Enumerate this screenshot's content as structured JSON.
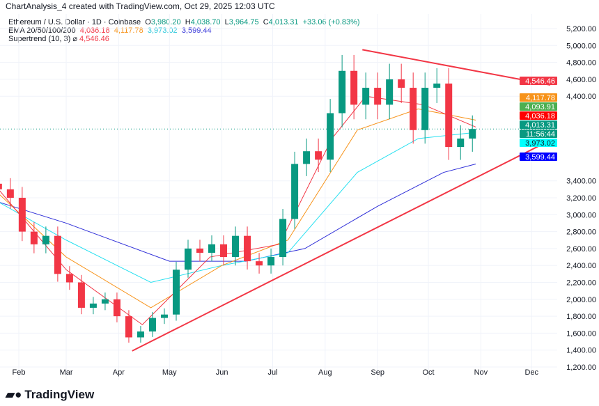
{
  "header": {
    "title": "ChartAnalysis_4 created with TradingView.com, Oct 29, 2025 12:03 UTC",
    "symbol": "Ethereum / U.S. Dollar · 1D · Coinbase",
    "open": "3,980.20",
    "high": "4,038.70",
    "low": "3,964.75",
    "close": "4,013.31",
    "change": "+33.06 (+0.83%)",
    "ema_label": "EMA 20/50/100/200",
    "ema20": "4,036.18",
    "ema50": "4,117.78",
    "ema100": "3,973.02",
    "ema200": "3,599.44",
    "st_label": "Supertrend (10, 3)",
    "st_value": "4,546.46"
  },
  "logo": "TradingView",
  "colors": {
    "up": "#089981",
    "down": "#f23645",
    "ema20": "#f23645",
    "ema50": "#f7931a",
    "ema100": "#26e0f0",
    "ema200": "#2f2fd8",
    "trend": "#f23645"
  },
  "price_labels": [
    {
      "text": "4,546.46",
      "color": "#f23645"
    },
    {
      "text": "4,117.78",
      "color": "#f7931a"
    },
    {
      "text": "4,093.91",
      "color": "#4caf50"
    },
    {
      "text": "4,036.18",
      "color": "#ff0000"
    },
    {
      "text": "4,013.31",
      "color": "#089981"
    },
    {
      "text": "11:56:44",
      "color": "#089981"
    },
    {
      "text": "3,973.02",
      "color": "#00ffff"
    },
    {
      "text": "3,599.44",
      "color": "#0000ff"
    }
  ],
  "chart_data": {
    "type": "candlestick",
    "ylim": [
      1100,
      5300
    ],
    "y_ticks": [
      1200,
      1400,
      1600,
      1800,
      2000,
      2200,
      2400,
      2600,
      2800,
      3000,
      3200,
      3400,
      4400,
      4600,
      4800,
      5000,
      5200
    ],
    "x_ticks": [
      {
        "label": "Feb",
        "date": "2025-02-01"
      },
      {
        "label": "Mar",
        "date": "2025-03-01"
      },
      {
        "label": "Apr",
        "date": "2025-04-01"
      },
      {
        "label": "May",
        "date": "2025-05-01"
      },
      {
        "label": "Jun",
        "date": "2025-06-01"
      },
      {
        "label": "Jul",
        "date": "2025-07-01"
      },
      {
        "label": "Aug",
        "date": "2025-08-01"
      },
      {
        "label": "Sep",
        "date": "2025-09-01"
      },
      {
        "label": "Oct",
        "date": "2025-10-01"
      },
      {
        "label": "Nov",
        "date": "2025-11-01"
      },
      {
        "label": "Dec",
        "date": "2025-12-01"
      }
    ],
    "closes": [
      [
        "2025-01-20",
        3300
      ],
      [
        "2025-01-27",
        3200
      ],
      [
        "2025-02-03",
        2800
      ],
      [
        "2025-02-10",
        2650
      ],
      [
        "2025-02-17",
        2750
      ],
      [
        "2025-02-24",
        2300
      ],
      [
        "2025-03-03",
        2200
      ],
      [
        "2025-03-10",
        1900
      ],
      [
        "2025-03-17",
        1950
      ],
      [
        "2025-03-24",
        2000
      ],
      [
        "2025-03-31",
        1800
      ],
      [
        "2025-04-07",
        1550
      ],
      [
        "2025-04-14",
        1620
      ],
      [
        "2025-04-21",
        1780
      ],
      [
        "2025-04-28",
        1820
      ],
      [
        "2025-05-05",
        2350
      ],
      [
        "2025-05-12",
        2600
      ],
      [
        "2025-05-19",
        2550
      ],
      [
        "2025-05-26",
        2650
      ],
      [
        "2025-06-02",
        2500
      ],
      [
        "2025-06-09",
        2750
      ],
      [
        "2025-06-16",
        2450
      ],
      [
        "2025-06-23",
        2400
      ],
      [
        "2025-06-30",
        2500
      ],
      [
        "2025-07-07",
        2950
      ],
      [
        "2025-07-14",
        3600
      ],
      [
        "2025-07-21",
        3750
      ],
      [
        "2025-07-28",
        3650
      ],
      [
        "2025-08-04",
        4200
      ],
      [
        "2025-08-11",
        4700
      ],
      [
        "2025-08-18",
        4300
      ],
      [
        "2025-08-25",
        4500
      ],
      [
        "2025-09-01",
        4300
      ],
      [
        "2025-09-08",
        4600
      ],
      [
        "2025-09-15",
        4500
      ],
      [
        "2025-09-22",
        4000
      ],
      [
        "2025-09-29",
        4500
      ],
      [
        "2025-10-06",
        4550
      ],
      [
        "2025-10-13",
        3800
      ],
      [
        "2025-10-20",
        3900
      ],
      [
        "2025-10-27",
        4013
      ]
    ],
    "ema200": [
      [
        "2025-01-20",
        3150
      ],
      [
        "2025-03-01",
        2900
      ],
      [
        "2025-05-01",
        2450
      ],
      [
        "2025-06-15",
        2450
      ],
      [
        "2025-07-20",
        2600
      ],
      [
        "2025-09-01",
        3100
      ],
      [
        "2025-10-10",
        3500
      ],
      [
        "2025-10-29",
        3599
      ]
    ],
    "ema100": [
      [
        "2025-01-20",
        3150
      ],
      [
        "2025-03-01",
        2700
      ],
      [
        "2025-04-20",
        2200
      ],
      [
        "2025-06-01",
        2400
      ],
      [
        "2025-07-10",
        2550
      ],
      [
        "2025-08-20",
        3500
      ],
      [
        "2025-09-25",
        3900
      ],
      [
        "2025-10-29",
        3973
      ]
    ],
    "ema50": [
      [
        "2025-01-20",
        3250
      ],
      [
        "2025-03-01",
        2500
      ],
      [
        "2025-04-20",
        1900
      ],
      [
        "2025-06-01",
        2400
      ],
      [
        "2025-07-10",
        2700
      ],
      [
        "2025-08-20",
        4000
      ],
      [
        "2025-09-25",
        4250
      ],
      [
        "2025-10-29",
        4118
      ]
    ],
    "ema20": [
      [
        "2025-01-20",
        3300
      ],
      [
        "2025-03-01",
        2350
      ],
      [
        "2025-04-15",
        1700
      ],
      [
        "2025-05-25",
        2500
      ],
      [
        "2025-07-05",
        2650
      ],
      [
        "2025-08-05",
        3900
      ],
      [
        "2025-08-25",
        4400
      ],
      [
        "2025-09-28",
        4300
      ],
      [
        "2025-10-29",
        4036
      ]
    ],
    "trendlines": [
      {
        "from": [
          "2025-08-23",
          4950
        ],
        "to": [
          "2025-12-12",
          4533
        ]
      },
      {
        "from": [
          "2025-04-09",
          1390
        ],
        "to": [
          "2025-12-12",
          3880
        ]
      }
    ]
  }
}
